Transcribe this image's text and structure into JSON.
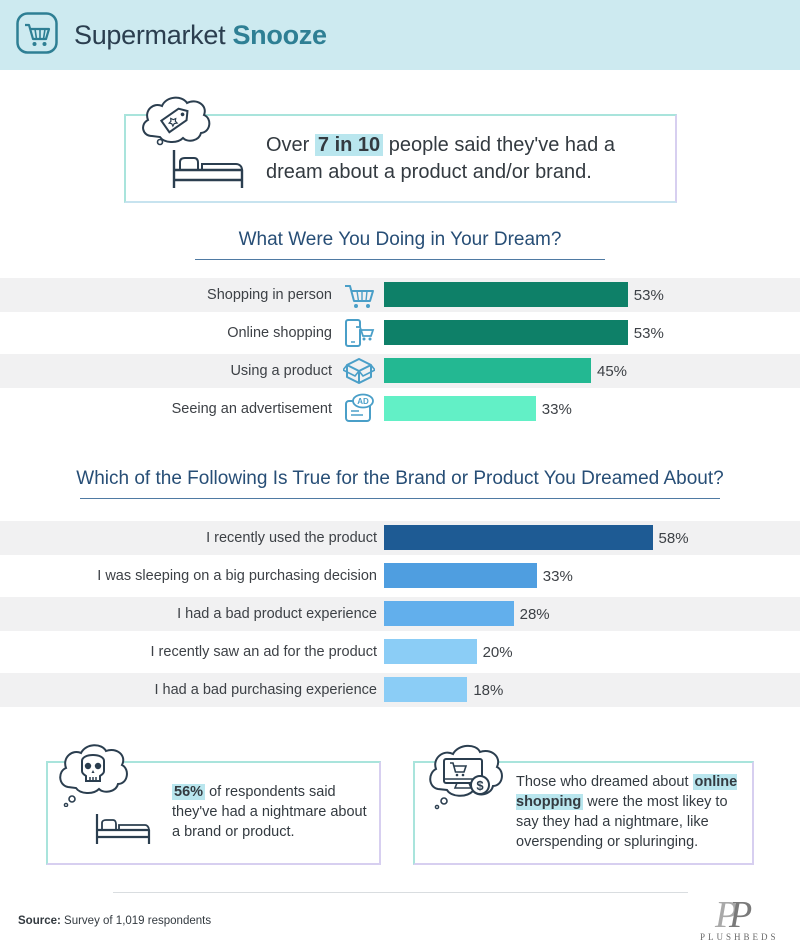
{
  "header": {
    "title_plain": "Supermarket",
    "title_bold": "Snooze"
  },
  "stat": {
    "prefix": "Over",
    "highlight": "7 in 10",
    "suffix": "people said they've had a dream about a product and/or brand."
  },
  "chart_data": [
    {
      "type": "bar",
      "orientation": "horizontal",
      "title": "What Were You Doing in Your Dream?",
      "categories": [
        "Shopping in person",
        "Online shopping",
        "Using a product",
        "Seeing an advertisement"
      ],
      "values": [
        53,
        53,
        45,
        33
      ],
      "value_labels": [
        "53%",
        "53%",
        "45%",
        "33%"
      ],
      "icons": [
        "shopping-cart-icon",
        "mobile-cart-icon",
        "product-box-icon",
        "ad-bubble-icon"
      ],
      "colors": [
        "#0e8068",
        "#0e8068",
        "#23b892",
        "#62f0c6"
      ],
      "unit": "%",
      "xlim": [
        0,
        100
      ]
    },
    {
      "type": "bar",
      "orientation": "horizontal",
      "title": "Which of the Following Is True for the Brand or Product You Dreamed About?",
      "categories": [
        "I recently used the product",
        "I was sleeping on a big purchasing decision",
        "I had a bad product experience",
        "I recently saw an ad for the product",
        "I had a bad purchasing experience"
      ],
      "values": [
        58,
        33,
        28,
        20,
        18
      ],
      "value_labels": [
        "58%",
        "33%",
        "28%",
        "20%",
        "18%"
      ],
      "colors": [
        "#1e5b94",
        "#4f9ee0",
        "#62afec",
        "#8bcdf6",
        "#8bcdf6"
      ],
      "unit": "%",
      "xlim": [
        0,
        100
      ]
    }
  ],
  "cards": [
    {
      "highlight": "56%",
      "text": "of respondents said they've had a nightmare about a brand or product."
    },
    {
      "prefix": "Those who dreamed about",
      "highlight": "online shopping",
      "suffix": "were the most likey to say they had a nightmare, like overspending or spluringing."
    }
  ],
  "footer": {
    "source_label": "Source:",
    "source_text": "Survey of 1,019 respondents",
    "brand": "PLUSHBEDS"
  }
}
